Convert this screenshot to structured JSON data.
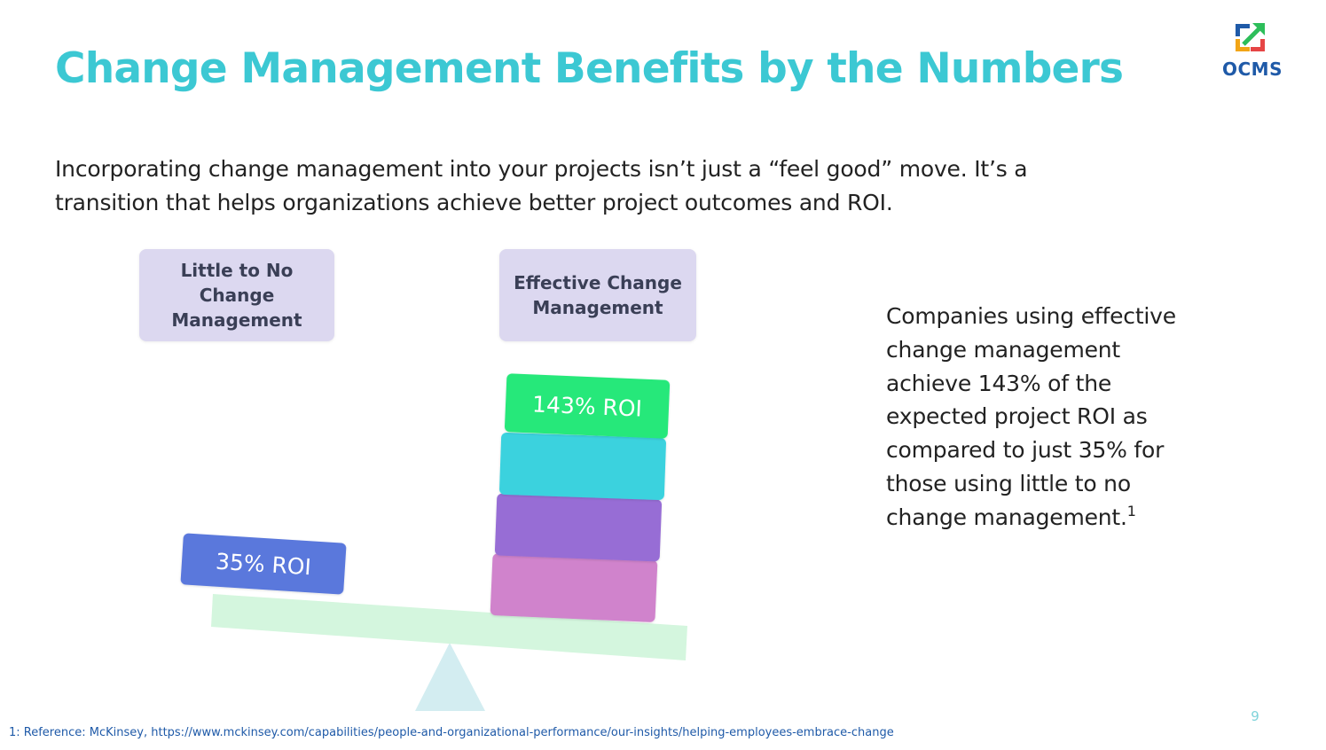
{
  "title": "Change Management Benefits by the Numbers",
  "logo": {
    "text": "OCMS"
  },
  "intro": "Incorporating change management into your projects isn’t just a “feel good” move. It’s a transition that helps organizations achieve better project outcomes and ROI.",
  "labels": {
    "left": "Little to No\nChange\nManagement",
    "right": "Effective Change\nManagement"
  },
  "blocks": {
    "left_roi": "35% ROI",
    "right_roi": "143% ROI"
  },
  "side_text": {
    "body": "Companies using effective change management achieve 143% of the expected project ROI as compared to just 35% for those using little to no change management.",
    "footnote_ref": "1"
  },
  "footnote": "1: Reference: McKinsey, https://www.mckinsey.com/capabilities/people-and-organizational-performance/our-insights/helping-employees-embrace-change",
  "page_number": "9",
  "colors": {
    "title": "#3CC8D3",
    "label_box": "#DCD8F0",
    "block_left_roi": "#5A78DC",
    "block_green": "#26E87A",
    "block_teal": "#3AD2DE",
    "block_purple": "#976DD5",
    "block_pink": "#D083CC",
    "beam": "#D4F6DE",
    "fulcrum": "#D3EDF1",
    "footnote": "#1F5AA8"
  }
}
